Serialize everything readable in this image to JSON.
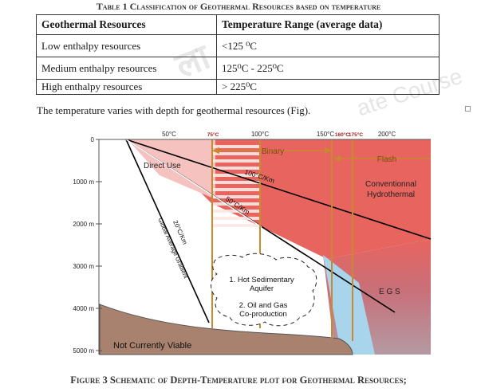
{
  "table": {
    "caption": "Table 1 Classification of Geothermal Resources based on temperature",
    "headers": [
      "Geothermal Resources",
      "Temperature Range (average  data)"
    ],
    "rows": [
      [
        "Low enthalpy resources",
        "<125 ⁰C"
      ],
      [
        "Medium enthalpy resources",
        "125⁰C - 225⁰C"
      ],
      [
        "High enthalpy resources",
        "> 225⁰C"
      ]
    ]
  },
  "intro_text": "The temperature varies with depth for geothermal resources (Fig).",
  "watermark": {
    "text": "ate Course",
    "logo": "ला"
  },
  "figure": {
    "caption": "Figure 3 Schematic of Depth-Temperature plot for Geothermal Resources;",
    "temp_labels": [
      {
        "value": 50,
        "label": "50°C"
      },
      {
        "value": 75,
        "label": "75°C",
        "bold": true
      },
      {
        "value": 100,
        "label": "100°C"
      },
      {
        "value": 150,
        "label": "150°C"
      },
      {
        "value": 160,
        "label": "160°C",
        "bold": true
      },
      {
        "value": 175,
        "label": "175°C",
        "bold": true
      },
      {
        "value": 200,
        "label": "200°C"
      }
    ],
    "depth_labels": [
      {
        "value": 0,
        "label": "0"
      },
      {
        "value": 1000,
        "label": "1000 m"
      },
      {
        "value": 2000,
        "label": "2000 m"
      },
      {
        "value": 3000,
        "label": "3000 m"
      },
      {
        "value": 4000,
        "label": "4000 m"
      },
      {
        "value": 5000,
        "label": "5000 m"
      }
    ],
    "regions": {
      "binary": "Binary",
      "flash": "Flash",
      "direct_use": "Direct Use",
      "conventional_line1": "Conventionnal",
      "conventional_line2": "Hydrothermal",
      "egs": "E G S",
      "not_viable": "Not Currently Viable",
      "sedimentary_line1": "1. Hot Sedimentary",
      "sedimentary_line2": "Aquifer",
      "oilgas_line1": "2. Oil and Gas",
      "oilgas_line2": "Co-production"
    },
    "gradients": [
      {
        "label": "100°C/Km"
      },
      {
        "label": "50°C/Km"
      },
      {
        "label": "20°C/Km"
      },
      {
        "label": "Global Average Gradient"
      }
    ],
    "colors": {
      "direct_use": "#f6c2c0",
      "hydrothermal": "#e8645e",
      "egs": "#b49aa2",
      "aquifer_blue": "#a8d4ec",
      "not_viable": "#a8826e",
      "stripe": "#fbe8e6",
      "orange_line": "#c98a2e"
    }
  }
}
